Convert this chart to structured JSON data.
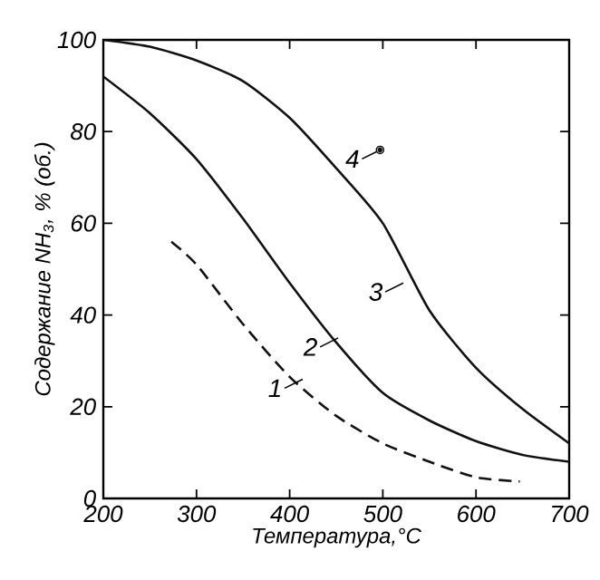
{
  "chart_data": {
    "type": "line",
    "xlabel": "Температура,°С",
    "ylabel": "Содержание NH$_{3}$, % (об.)",
    "xlim": [
      200,
      700
    ],
    "ylim": [
      0,
      100
    ],
    "xticks": [
      200,
      300,
      400,
      500,
      600,
      700
    ],
    "yticks": [
      0,
      20,
      40,
      60,
      80,
      100
    ],
    "grid": false,
    "marker": "none",
    "series": [
      {
        "color": "#111111",
        "line_style": "dashed",
        "x": [
          273,
          300,
          350,
          400,
          450,
          500,
          550,
          600,
          647
        ],
        "values": [
          56,
          51,
          38,
          26.5,
          18,
          12,
          8,
          4.6,
          3.7
        ]
      },
      {
        "color": "#111111",
        "line_style": "solid",
        "x": [
          200,
          250,
          300,
          350,
          400,
          450,
          500,
          550,
          600,
          650,
          700
        ],
        "values": [
          92,
          84,
          74,
          61,
          47,
          34,
          23,
          17,
          12.5,
          9.5,
          8
        ]
      },
      {
        "color": "#111111",
        "line_style": "solid",
        "x": [
          200,
          250,
          300,
          350,
          400,
          450,
          500,
          550,
          600,
          650,
          700
        ],
        "values": [
          100,
          98.5,
          95.5,
          91,
          83,
          72,
          60,
          41,
          28.5,
          19.5,
          12
        ]
      },
      {
        "type": "scatter",
        "marker": "circle",
        "color": "#111111",
        "x": [
          497
        ],
        "values": [
          76
        ]
      }
    ],
    "annotations": [
      {
        "text": "1",
        "x": 414,
        "y": 26
      },
      {
        "text": "2",
        "x": 452,
        "y": 35
      },
      {
        "text": "3",
        "x": 522,
        "y": 47
      },
      {
        "text": "4",
        "x": 497,
        "y": 76
      }
    ]
  }
}
